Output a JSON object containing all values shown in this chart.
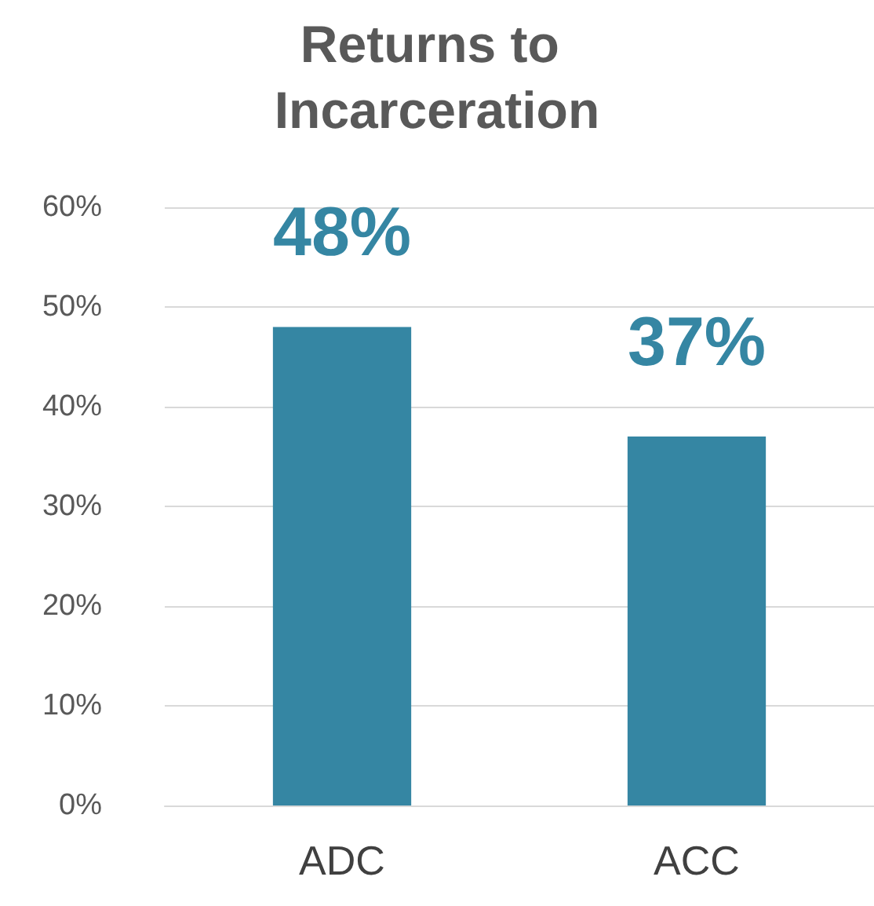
{
  "chart_data": {
    "type": "bar",
    "title": "Returns to Incarceration",
    "categories": [
      "ADC",
      "ACC"
    ],
    "values": [
      48,
      37
    ],
    "color": "#3586a3",
    "value_labels": [
      "48%",
      "37%"
    ],
    "ylim": [
      0,
      60
    ],
    "yticks": [
      {
        "value": 0,
        "label": "0%"
      },
      {
        "value": 10,
        "label": "10%"
      },
      {
        "value": 20,
        "label": "20%"
      },
      {
        "value": 30,
        "label": "30%"
      },
      {
        "value": 40,
        "label": "40%"
      },
      {
        "value": 50,
        "label": "50%"
      },
      {
        "value": 60,
        "label": "60%"
      }
    ],
    "grid": "y"
  }
}
